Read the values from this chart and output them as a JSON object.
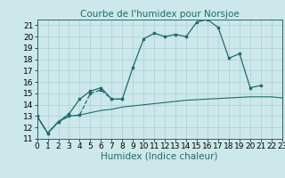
{
  "title": "Courbe de l'humidex pour Norsjoe",
  "xlabel": "Humidex (Indice chaleur)",
  "x_values": [
    0,
    1,
    2,
    3,
    4,
    5,
    6,
    7,
    8,
    9,
    10,
    11,
    12,
    13,
    14,
    15,
    16,
    17,
    18,
    19,
    20,
    21,
    22,
    23
  ],
  "line1_y": [
    13,
    11.5,
    12.5,
    13.0,
    13.1,
    15.0,
    15.3,
    14.5,
    14.5,
    null,
    null,
    null,
    null,
    null,
    null,
    null,
    null,
    null,
    null,
    null,
    null,
    null,
    null,
    null
  ],
  "line2_y": [
    13,
    11.5,
    12.5,
    13.2,
    14.5,
    15.2,
    15.5,
    14.5,
    14.5,
    17.3,
    19.8,
    20.3,
    20.0,
    20.2,
    20.0,
    21.3,
    21.5,
    20.8,
    18.1,
    18.5,
    15.5,
    15.7,
    null,
    null
  ],
  "line3_y": [
    13,
    11.5,
    12.5,
    13.0,
    13.1,
    13.3,
    13.5,
    13.6,
    13.8,
    13.9,
    14.0,
    14.1,
    14.2,
    14.3,
    14.4,
    14.45,
    14.5,
    14.55,
    14.6,
    14.65,
    14.7,
    14.7,
    14.7,
    14.6
  ],
  "bg_color": "#cce8ea",
  "grid_color": "#aacfd2",
  "line_color": "#1f6b6b",
  "title_fontsize": 7.5,
  "xlabel_fontsize": 7.5,
  "tick_fontsize": 6.5,
  "xlim": [
    0,
    23
  ],
  "ylim": [
    11,
    21.5
  ],
  "yticks": [
    11,
    12,
    13,
    14,
    15,
    16,
    17,
    18,
    19,
    20,
    21
  ],
  "xticks": [
    0,
    1,
    2,
    3,
    4,
    5,
    6,
    7,
    8,
    9,
    10,
    11,
    12,
    13,
    14,
    15,
    16,
    17,
    18,
    19,
    20,
    21,
    22,
    23
  ]
}
